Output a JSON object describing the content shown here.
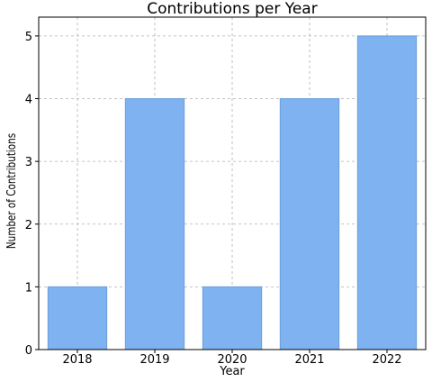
{
  "chart_data": {
    "type": "bar",
    "title": "Contributions per Year",
    "xlabel": "Year",
    "ylabel": "Number of Contributions",
    "categories": [
      "2018",
      "2019",
      "2020",
      "2021",
      "2022"
    ],
    "values": [
      1,
      4,
      1,
      4,
      5
    ],
    "ylim": [
      0,
      5.3
    ],
    "yticks": [
      0,
      1,
      2,
      3,
      4,
      5
    ],
    "grid": true,
    "bar_color": "#7fb2f0",
    "bar_edge_color": "#6a9fd8",
    "grid_color": "#b0b0b0"
  }
}
